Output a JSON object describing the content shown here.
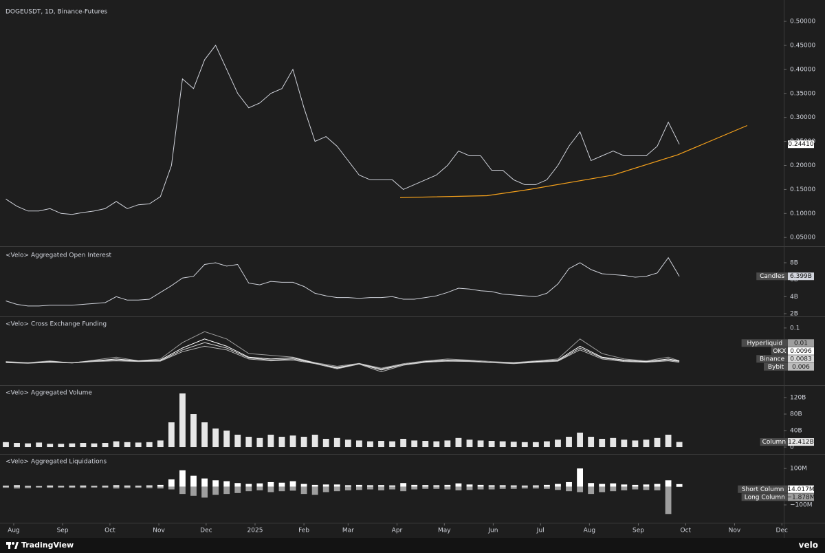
{
  "chart_data": [
    {
      "type": "line",
      "title": "DOGEUSDT, 1D, Binance-Futures",
      "x": [
        -5,
        2,
        9,
        16,
        23,
        30,
        37,
        44,
        51,
        58,
        65,
        72,
        79,
        86,
        93,
        100,
        107,
        114,
        121,
        128,
        135,
        142,
        149,
        156,
        163,
        170,
        177,
        184,
        191,
        198,
        205,
        212,
        219,
        226,
        233,
        240,
        247,
        254,
        261,
        268,
        275,
        282,
        289,
        296,
        303,
        310,
        317,
        324,
        331,
        338,
        345,
        352,
        359,
        366,
        373,
        380,
        387,
        394,
        401,
        408,
        415,
        422
      ],
      "values": [
        0.13,
        0.115,
        0.105,
        0.105,
        0.11,
        0.1,
        0.098,
        0.102,
        0.105,
        0.11,
        0.125,
        0.11,
        0.118,
        0.12,
        0.135,
        0.2,
        0.38,
        0.36,
        0.42,
        0.45,
        0.4,
        0.35,
        0.32,
        0.33,
        0.35,
        0.36,
        0.4,
        0.32,
        0.25,
        0.26,
        0.24,
        0.21,
        0.18,
        0.17,
        0.17,
        0.17,
        0.15,
        0.16,
        0.17,
        0.18,
        0.2,
        0.23,
        0.22,
        0.22,
        0.19,
        0.19,
        0.17,
        0.16,
        0.16,
        0.17,
        0.2,
        0.24,
        0.27,
        0.21,
        0.22,
        0.23,
        0.22,
        0.22,
        0.22,
        0.24,
        0.29,
        0.2441
      ],
      "color": "#d1d4dc",
      "last_value_label": "0.24410",
      "ylim": [
        0.036,
        0.533
      ],
      "yticks": [
        {
          "value": 0.05,
          "label": "0.05000"
        },
        {
          "value": 0.1,
          "label": "0.10000"
        },
        {
          "value": 0.15,
          "label": "0.15000"
        },
        {
          "value": 0.2,
          "label": "0.20000"
        },
        {
          "value": 0.25,
          "label": "0.25000"
        },
        {
          "value": 0.3,
          "label": "0.30000"
        },
        {
          "value": 0.35,
          "label": "0.35000"
        },
        {
          "value": 0.4,
          "label": "0.40000"
        },
        {
          "value": 0.45,
          "label": "0.45000"
        },
        {
          "value": 0.5,
          "label": "0.50000"
        }
      ],
      "xlim": [
        -8.7,
        488.2
      ],
      "xticks": [
        {
          "value": 0,
          "label": "Aug"
        },
        {
          "value": 31,
          "label": "Sep"
        },
        {
          "value": 61,
          "label": "Oct"
        },
        {
          "value": 92,
          "label": "Nov"
        },
        {
          "value": 122,
          "label": "Dec"
        },
        {
          "value": 153,
          "label": "2025"
        },
        {
          "value": 184,
          "label": "Feb"
        },
        {
          "value": 212,
          "label": "Mar"
        },
        {
          "value": 243,
          "label": "Apr"
        },
        {
          "value": 273,
          "label": "May"
        },
        {
          "value": 304,
          "label": "Jun"
        },
        {
          "value": 334,
          "label": "Jul"
        },
        {
          "value": 365,
          "label": "Aug"
        },
        {
          "value": 396,
          "label": "Sep"
        },
        {
          "value": 426,
          "label": "Oct"
        },
        {
          "value": 457,
          "label": "Nov"
        },
        {
          "value": 487,
          "label": "Dec"
        }
      ],
      "trendline": {
        "x": [
          245,
          300,
          327,
          380,
          421,
          465
        ],
        "values": [
          0.133,
          0.137,
          0.15,
          0.18,
          0.222,
          0.283
        ],
        "color": "#f7a21b"
      }
    },
    {
      "type": "line",
      "title": "<Velo> Aggregated Open Interest",
      "x": [
        -5,
        2,
        9,
        16,
        23,
        30,
        37,
        44,
        51,
        58,
        65,
        72,
        79,
        86,
        93,
        100,
        107,
        114,
        121,
        128,
        135,
        142,
        149,
        156,
        163,
        170,
        177,
        184,
        191,
        198,
        205,
        212,
        219,
        226,
        233,
        240,
        247,
        254,
        261,
        268,
        275,
        282,
        289,
        296,
        303,
        310,
        317,
        324,
        331,
        338,
        345,
        352,
        359,
        366,
        373,
        380,
        387,
        394,
        401,
        408,
        415,
        422
      ],
      "series": [
        {
          "name": "Candles",
          "color": "#d1d4dc",
          "last_value_label": "6.399B",
          "values": [
            3.5,
            3.1,
            2.9,
            2.9,
            3.0,
            3.0,
            3.0,
            3.1,
            3.2,
            3.3,
            4.0,
            3.6,
            3.6,
            3.7,
            4.5,
            5.3,
            6.2,
            6.4,
            7.8,
            8.0,
            7.6,
            7.8,
            5.6,
            5.4,
            5.8,
            5.7,
            5.7,
            5.2,
            4.4,
            4.1,
            3.9,
            3.9,
            3.8,
            3.9,
            3.9,
            4.0,
            3.7,
            3.7,
            3.9,
            4.1,
            4.5,
            5.0,
            4.9,
            4.7,
            4.6,
            4.3,
            4.2,
            4.1,
            4.0,
            4.4,
            5.5,
            7.3,
            8.0,
            7.2,
            6.7,
            6.6,
            6.5,
            6.3,
            6.4,
            6.8,
            8.6,
            6.399
          ]
        }
      ],
      "ylim": [
        1.84,
        9.62
      ],
      "yticks": [
        {
          "value": 2,
          "label": "2B"
        },
        {
          "value": 4,
          "label": "4B"
        },
        {
          "value": 6,
          "label": "6B"
        },
        {
          "value": 8,
          "label": "8B"
        }
      ]
    },
    {
      "type": "line",
      "title": "<Velo> Cross Exchange Funding",
      "x": [
        -5,
        9,
        23,
        37,
        51,
        65,
        79,
        93,
        107,
        121,
        135,
        149,
        163,
        177,
        191,
        205,
        219,
        233,
        247,
        261,
        275,
        289,
        303,
        317,
        331,
        345,
        359,
        373,
        387,
        401,
        415,
        422
      ],
      "series": [
        {
          "name": "Hyperliquid",
          "color": "#9e9e9e",
          "values": [
            0.008,
            0.005,
            0.01,
            0.004,
            0.012,
            0.02,
            0.01,
            0.015,
            0.06,
            0.09,
            0.07,
            0.03,
            0.025,
            0.02,
            0.005,
            -0.005,
            0.003,
            -0.01,
            0.002,
            0.01,
            0.015,
            0.012,
            0.008,
            0.005,
            0.01,
            0.015,
            0.07,
            0.03,
            0.015,
            0.01,
            0.02,
            0.01
          ]
        },
        {
          "name": "OKX",
          "color": "#ffffff",
          "values": [
            0.007,
            0.004,
            0.008,
            0.005,
            0.01,
            0.015,
            0.01,
            0.012,
            0.045,
            0.07,
            0.05,
            0.02,
            0.015,
            0.018,
            0.004,
            -0.01,
            0.002,
            -0.015,
            0,
            0.008,
            0.012,
            0.01,
            0.006,
            0.004,
            0.008,
            0.012,
            0.05,
            0.02,
            0.012,
            0.008,
            0.015,
            0.0096
          ]
        },
        {
          "name": "Binance",
          "color": "#d9d9d9",
          "values": [
            0.006,
            0.004,
            0.007,
            0.005,
            0.009,
            0.012,
            0.009,
            0.01,
            0.04,
            0.06,
            0.045,
            0.018,
            0.012,
            0.015,
            0.003,
            -0.008,
            0.002,
            -0.012,
            0,
            0.007,
            0.01,
            0.009,
            0.006,
            0.003,
            0.007,
            0.01,
            0.045,
            0.018,
            0.01,
            0.007,
            0.012,
            0.0083
          ]
        },
        {
          "name": "Bybit",
          "color": "#bdbdbd",
          "values": [
            0.005,
            0.003,
            0.006,
            0.004,
            0.008,
            0.01,
            0.008,
            0.009,
            0.035,
            0.05,
            0.04,
            0.015,
            0.01,
            0.012,
            0.002,
            -0.012,
            0.001,
            -0.02,
            -0.002,
            0.006,
            0.009,
            0.008,
            0.005,
            0.002,
            0.006,
            0.009,
            0.04,
            0.015,
            0.008,
            0.006,
            0.01,
            0.006
          ]
        }
      ],
      "ylim": [
        -0.053,
        0.128
      ],
      "yticks": [
        0.1
      ]
    },
    {
      "type": "bar",
      "title": "<Velo> Aggregated Volume",
      "x": [
        -5,
        2,
        9,
        16,
        23,
        30,
        37,
        44,
        51,
        58,
        65,
        72,
        79,
        86,
        93,
        100,
        107,
        114,
        121,
        128,
        135,
        142,
        149,
        156,
        163,
        170,
        177,
        184,
        191,
        198,
        205,
        212,
        219,
        226,
        233,
        240,
        247,
        254,
        261,
        268,
        275,
        282,
        289,
        296,
        303,
        310,
        317,
        324,
        331,
        338,
        345,
        352,
        359,
        366,
        373,
        380,
        387,
        394,
        401,
        408,
        415,
        422
      ],
      "series": [
        {
          "name": "Column",
          "color": "#e6e6e6",
          "last_value_label": "12.412B",
          "values": [
            12,
            10,
            9,
            11,
            8,
            8,
            9,
            10,
            9,
            10,
            14,
            12,
            11,
            12,
            16,
            60,
            130,
            80,
            60,
            45,
            40,
            30,
            25,
            22,
            30,
            25,
            28,
            25,
            30,
            20,
            22,
            18,
            16,
            14,
            15,
            14,
            20,
            16,
            15,
            14,
            16,
            22,
            18,
            16,
            15,
            14,
            13,
            12,
            12,
            14,
            18,
            25,
            35,
            25,
            20,
            22,
            18,
            16,
            18,
            22,
            30,
            12.412
          ]
        }
      ],
      "ylim": [
        -13.3,
        146.7
      ],
      "yticks": [
        0,
        {
          "value": 40,
          "label": "40B"
        },
        {
          "value": 80,
          "label": "80B"
        },
        {
          "value": 120,
          "label": "120B"
        }
      ]
    },
    {
      "type": "bar",
      "title": "<Velo> Aggregated Liquidations",
      "x": [
        -5,
        2,
        9,
        16,
        23,
        30,
        37,
        44,
        51,
        58,
        65,
        72,
        79,
        86,
        93,
        100,
        107,
        114,
        121,
        128,
        135,
        142,
        149,
        156,
        163,
        170,
        177,
        184,
        191,
        198,
        205,
        212,
        219,
        226,
        233,
        240,
        247,
        254,
        261,
        268,
        275,
        282,
        289,
        296,
        303,
        310,
        317,
        324,
        331,
        338,
        345,
        352,
        359,
        366,
        373,
        380,
        387,
        394,
        401,
        408,
        415,
        422
      ],
      "series": [
        {
          "name": "Short Column",
          "color": "#ffffff",
          "last_value_label": "14.017M",
          "values": [
            5,
            8,
            4,
            3,
            6,
            4,
            5,
            6,
            4,
            5,
            8,
            6,
            5,
            7,
            10,
            40,
            90,
            60,
            45,
            35,
            30,
            20,
            15,
            18,
            25,
            22,
            30,
            15,
            10,
            12,
            12,
            8,
            10,
            8,
            9,
            7,
            20,
            10,
            9,
            8,
            10,
            18,
            12,
            10,
            8,
            8,
            7,
            6,
            7,
            10,
            15,
            25,
            100,
            20,
            15,
            18,
            12,
            10,
            12,
            15,
            35,
            14.017
          ]
        },
        {
          "name": "Long Column",
          "color": "#9e9e9e",
          "last_value_label": "−1.878M",
          "values": [
            -6,
            -10,
            -8,
            -5,
            -6,
            -5,
            -6,
            -7,
            -5,
            -6,
            -10,
            -8,
            -6,
            -8,
            -10,
            -15,
            -40,
            -50,
            -60,
            -45,
            -40,
            -35,
            -25,
            -20,
            -30,
            -25,
            -22,
            -40,
            -45,
            -30,
            -25,
            -20,
            -18,
            -15,
            -20,
            -15,
            -25,
            -15,
            -12,
            -12,
            -15,
            -20,
            -18,
            -15,
            -15,
            -12,
            -12,
            -10,
            -10,
            -12,
            -18,
            -25,
            -30,
            -40,
            -30,
            -25,
            -20,
            -15,
            -18,
            -20,
            -150,
            -1.878
          ]
        }
      ],
      "ylim": [
        -198,
        172
      ],
      "yticks": [
        {
          "value": -100,
          "label": "−100M"
        },
        {
          "value": 100,
          "label": "100M"
        }
      ]
    }
  ],
  "footer": {
    "brand": "TradingView",
    "watermark": "velo"
  }
}
